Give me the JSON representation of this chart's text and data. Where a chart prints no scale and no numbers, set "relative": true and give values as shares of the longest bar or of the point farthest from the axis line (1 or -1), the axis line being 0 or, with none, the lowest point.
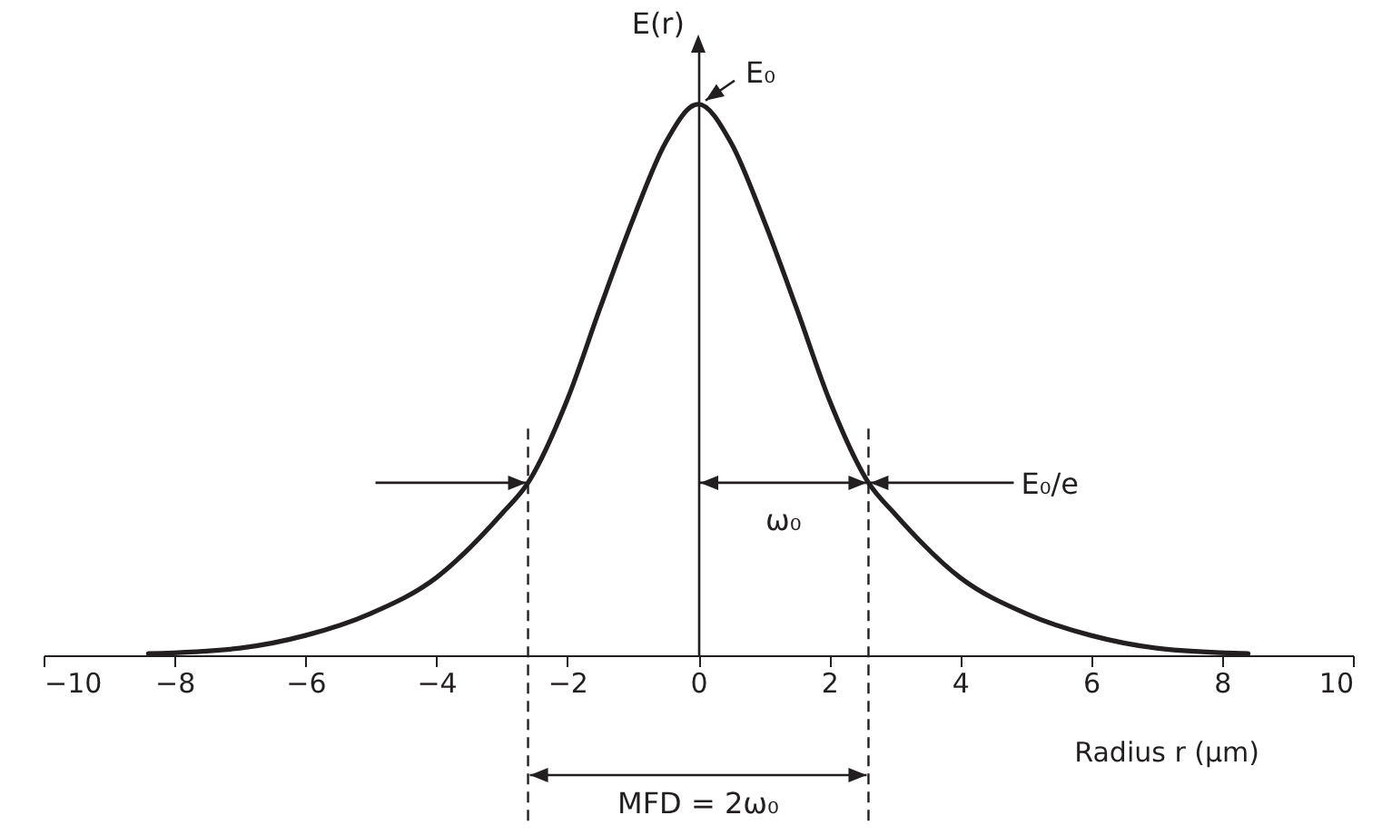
{
  "chart_data": {
    "type": "line",
    "relative": true,
    "ylabel": "E(r)",
    "xlabel": "Radius r (μm)",
    "xlim": [
      -10,
      10
    ],
    "xticks": [
      {
        "value": -10,
        "label": "−10"
      },
      {
        "value": -8,
        "label": "−8"
      },
      {
        "value": -6,
        "label": "−6"
      },
      {
        "value": -4,
        "label": "−4"
      },
      {
        "value": -2,
        "label": "−2"
      },
      0,
      2,
      4,
      6,
      8,
      10
    ],
    "x": [
      -8.4,
      -7,
      -6,
      -5,
      -4,
      -3,
      -2.6,
      -2,
      -1.5,
      -1,
      -0.5,
      0,
      0.5,
      1,
      1.5,
      2,
      2.6,
      3,
      4,
      5,
      6,
      7,
      8.4
    ],
    "series": [
      {
        "color": "#231f20",
        "values": [
          0.003,
          0.013,
          0.036,
          0.076,
          0.141,
          0.257,
          0.313,
          0.464,
          0.63,
          0.79,
          0.93,
          1,
          0.93,
          0.79,
          0.63,
          0.464,
          0.313,
          0.257,
          0.141,
          0.076,
          0.036,
          0.013,
          0.003
        ]
      }
    ],
    "ref_lines": [
      {
        "axis": "x",
        "value": -2.6,
        "line_style": "dashed"
      },
      {
        "axis": "x",
        "value": 2.6,
        "line_style": "dashed"
      }
    ],
    "annotations": [
      {
        "text": "E₀",
        "x": 0,
        "y": 1
      },
      "E₀/e",
      "ω₀",
      "MFD = 2ω₀"
    ],
    "line_style": "solid",
    "marker": "none",
    "legend": false
  }
}
